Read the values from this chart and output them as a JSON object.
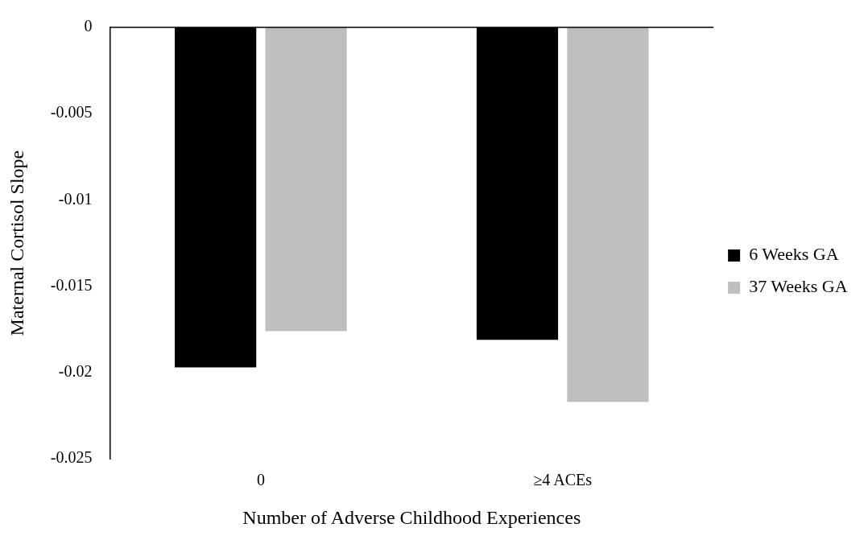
{
  "chart_data": {
    "type": "bar",
    "xlabel": "Number of Adverse Childhood Experiences",
    "ylabel": "Maternal Cortisol Slope",
    "categories": [
      "0",
      "≥4 ACEs"
    ],
    "series": [
      {
        "name": "6 Weeks GA",
        "color": "#000000",
        "values": [
          -0.0197,
          -0.0181
        ]
      },
      {
        "name": "37 Weeks GA",
        "color": "#bfbfbf",
        "values": [
          -0.0176,
          -0.0217
        ]
      }
    ],
    "ylim": [
      -0.025,
      0
    ],
    "yticks": [
      -0.025,
      -0.02,
      -0.015,
      -0.01,
      -0.005,
      0
    ],
    "grid": false,
    "legend": "right"
  }
}
